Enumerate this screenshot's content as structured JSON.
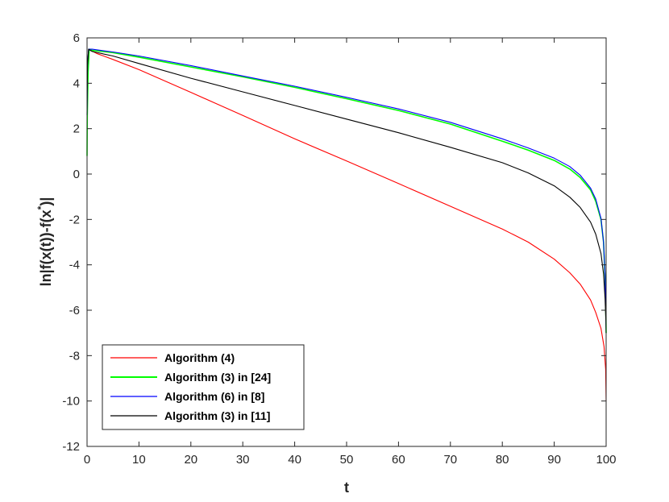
{
  "chart_data": {
    "type": "line",
    "title": "",
    "xlabel": "t",
    "ylabel": "ln|f(x(t))-f(x",
    "ylabel_sup": "*",
    "ylabel_end": ")|",
    "xlim": [
      0,
      100
    ],
    "ylim": [
      -12,
      6
    ],
    "xticks": [
      0,
      10,
      20,
      30,
      40,
      50,
      60,
      70,
      80,
      90,
      100
    ],
    "yticks": [
      -12,
      -10,
      -8,
      -6,
      -4,
      -2,
      0,
      2,
      4,
      6
    ],
    "grid": false,
    "legend_position": "bottom-left",
    "series": [
      {
        "name": "Algorithm (4)",
        "color": "#ff0000",
        "points": [
          [
            0.3,
            5.5
          ],
          [
            2,
            5.3
          ],
          [
            5,
            5.05
          ],
          [
            10,
            4.6
          ],
          [
            20,
            3.6
          ],
          [
            30,
            2.58
          ],
          [
            40,
            1.55
          ],
          [
            50,
            0.58
          ],
          [
            60,
            -0.42
          ],
          [
            70,
            -1.42
          ],
          [
            80,
            -2.42
          ],
          [
            85,
            -3.0
          ],
          [
            90,
            -3.75
          ],
          [
            93,
            -4.35
          ],
          [
            95,
            -4.85
          ],
          [
            97,
            -5.55
          ],
          [
            98,
            -6.1
          ],
          [
            99,
            -6.8
          ],
          [
            99.6,
            -7.6
          ],
          [
            99.9,
            -8.6
          ],
          [
            100,
            -10.0
          ]
        ]
      },
      {
        "name": "Algorithm (3) in [24]",
        "color": "#00ff00",
        "points": [
          [
            0,
            0.8
          ],
          [
            0.05,
            2.6
          ],
          [
            0.2,
            4.5
          ],
          [
            0.4,
            5.5
          ],
          [
            1,
            5.45
          ],
          [
            5,
            5.35
          ],
          [
            10,
            5.15
          ],
          [
            20,
            4.72
          ],
          [
            30,
            4.28
          ],
          [
            40,
            3.82
          ],
          [
            50,
            3.32
          ],
          [
            60,
            2.8
          ],
          [
            70,
            2.2
          ],
          [
            80,
            1.45
          ],
          [
            85,
            1.05
          ],
          [
            90,
            0.6
          ],
          [
            93,
            0.22
          ],
          [
            95,
            -0.15
          ],
          [
            97,
            -0.7
          ],
          [
            98,
            -1.2
          ],
          [
            99,
            -2.0
          ],
          [
            99.5,
            -3.0
          ],
          [
            99.8,
            -4.6
          ],
          [
            99.95,
            -6.2
          ],
          [
            100,
            -7.0
          ]
        ]
      },
      {
        "name": "Algorithm (6) in [8]",
        "color": "#0000ff",
        "points": [
          [
            0,
            2.6
          ],
          [
            0.1,
            4.8
          ],
          [
            0.3,
            5.5
          ],
          [
            1,
            5.5
          ],
          [
            5,
            5.38
          ],
          [
            10,
            5.2
          ],
          [
            20,
            4.78
          ],
          [
            30,
            4.32
          ],
          [
            40,
            3.87
          ],
          [
            50,
            3.38
          ],
          [
            60,
            2.87
          ],
          [
            70,
            2.28
          ],
          [
            80,
            1.55
          ],
          [
            85,
            1.15
          ],
          [
            90,
            0.7
          ],
          [
            93,
            0.33
          ],
          [
            95,
            -0.05
          ],
          [
            97,
            -0.62
          ],
          [
            98,
            -1.1
          ],
          [
            99,
            -1.95
          ],
          [
            99.5,
            -3.0
          ],
          [
            99.8,
            -4.5
          ],
          [
            99.95,
            -6.2
          ],
          [
            100,
            -7.0
          ]
        ]
      },
      {
        "name": "Algorithm (3) in [11]",
        "color": "#000000",
        "points": [
          [
            0,
            2.6
          ],
          [
            0.1,
            4.8
          ],
          [
            0.3,
            5.5
          ],
          [
            1,
            5.4
          ],
          [
            5,
            5.2
          ],
          [
            10,
            4.87
          ],
          [
            20,
            4.22
          ],
          [
            30,
            3.62
          ],
          [
            40,
            3.02
          ],
          [
            50,
            2.42
          ],
          [
            60,
            1.82
          ],
          [
            70,
            1.18
          ],
          [
            80,
            0.5
          ],
          [
            85,
            0.05
          ],
          [
            90,
            -0.52
          ],
          [
            93,
            -1.02
          ],
          [
            95,
            -1.47
          ],
          [
            97,
            -2.12
          ],
          [
            98,
            -2.65
          ],
          [
            99,
            -3.5
          ],
          [
            99.5,
            -4.4
          ],
          [
            99.8,
            -5.5
          ],
          [
            99.95,
            -6.5
          ],
          [
            100,
            -7.0
          ]
        ]
      }
    ]
  }
}
